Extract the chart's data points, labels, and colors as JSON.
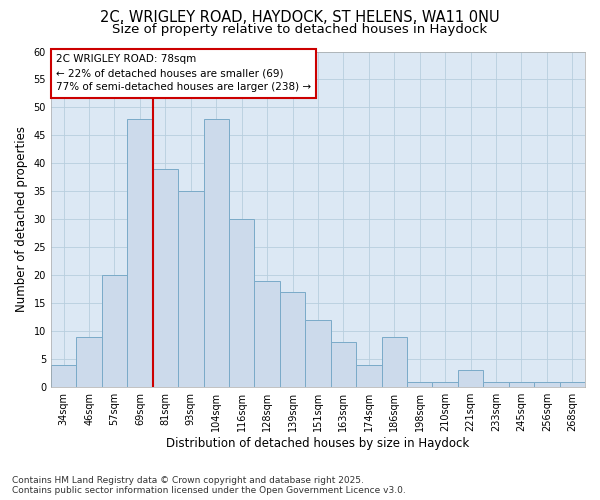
{
  "title_line1": "2C, WRIGLEY ROAD, HAYDOCK, ST HELENS, WA11 0NU",
  "title_line2": "Size of property relative to detached houses in Haydock",
  "xlabel": "Distribution of detached houses by size in Haydock",
  "ylabel": "Number of detached properties",
  "categories": [
    "34sqm",
    "46sqm",
    "57sqm",
    "69sqm",
    "81sqm",
    "93sqm",
    "104sqm",
    "116sqm",
    "128sqm",
    "139sqm",
    "151sqm",
    "163sqm",
    "174sqm",
    "186sqm",
    "198sqm",
    "210sqm",
    "221sqm",
    "233sqm",
    "245sqm",
    "256sqm",
    "268sqm"
  ],
  "values": [
    4,
    9,
    20,
    48,
    39,
    35,
    48,
    30,
    19,
    17,
    12,
    8,
    4,
    9,
    1,
    1,
    3,
    1,
    1,
    1,
    1
  ],
  "bar_color": "#ccdaeb",
  "bar_edge_color": "#7aaac8",
  "grid_color": "#b8cede",
  "background_color": "#dce8f4",
  "vline_color": "#cc0000",
  "annotation_text": "2C WRIGLEY ROAD: 78sqm\n← 22% of detached houses are smaller (69)\n77% of semi-detached houses are larger (238) →",
  "annotation_box_color": "#cc0000",
  "ylim": [
    0,
    60
  ],
  "yticks": [
    0,
    5,
    10,
    15,
    20,
    25,
    30,
    35,
    40,
    45,
    50,
    55,
    60
  ],
  "footer_line1": "Contains HM Land Registry data © Crown copyright and database right 2025.",
  "footer_line2": "Contains public sector information licensed under the Open Government Licence v3.0.",
  "title_fontsize": 10.5,
  "subtitle_fontsize": 9.5,
  "axis_label_fontsize": 8.5,
  "tick_fontsize": 7,
  "annotation_fontsize": 7.5,
  "footer_fontsize": 6.5
}
